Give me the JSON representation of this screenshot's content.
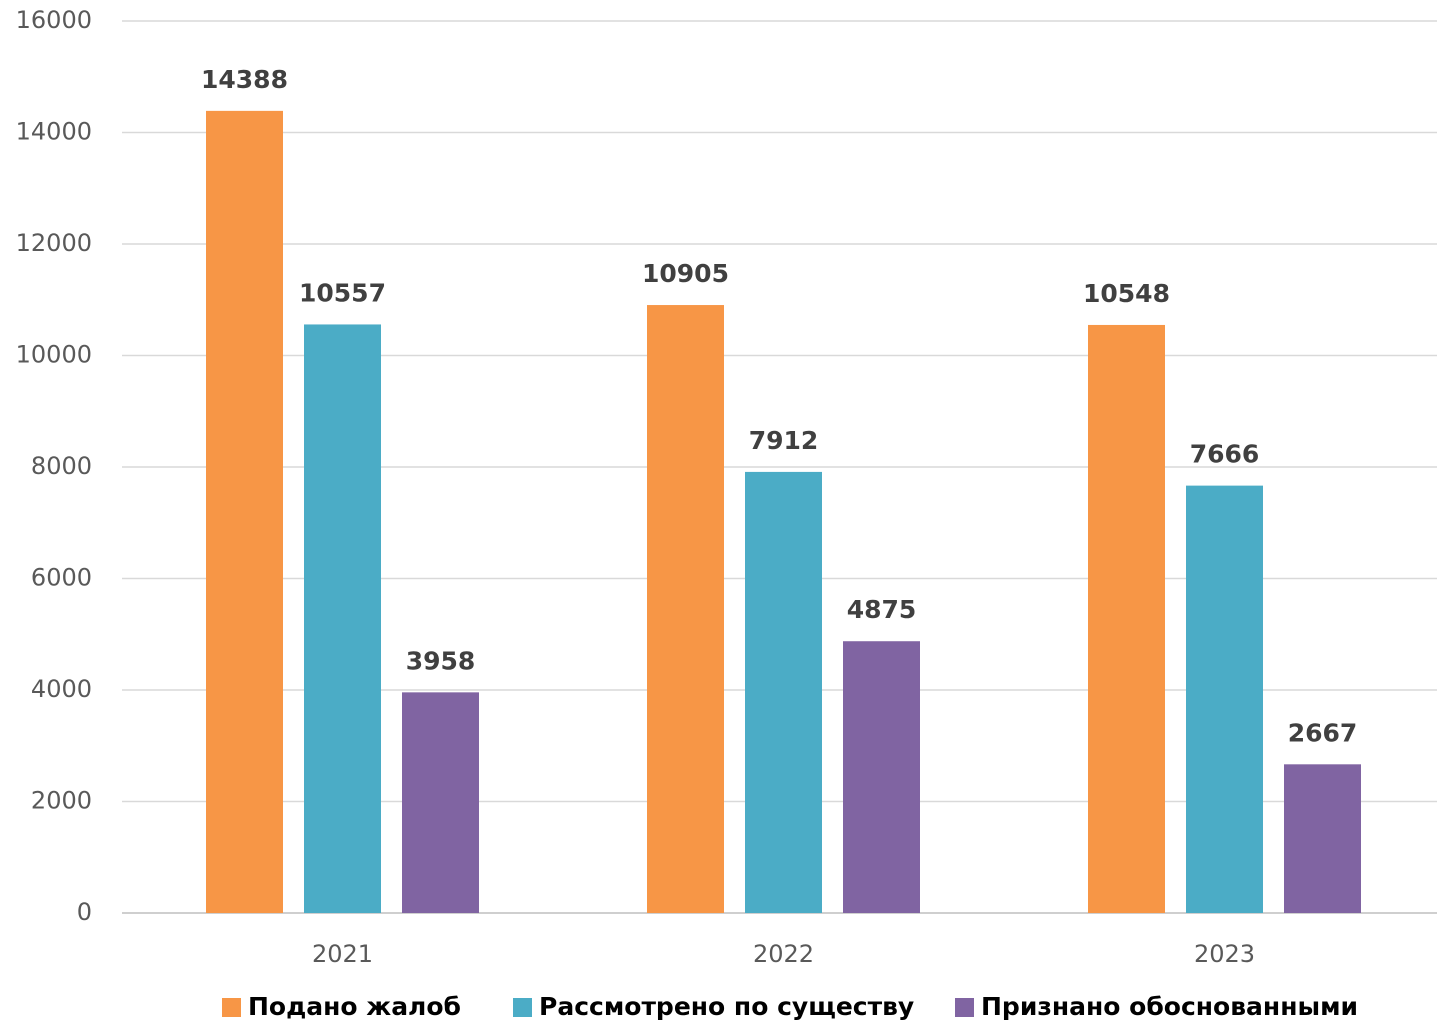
{
  "chart_data": {
    "type": "bar",
    "categories": [
      "2021",
      "2022",
      "2023"
    ],
    "series": [
      {
        "name": "Подано жалоб",
        "color": "#f79646",
        "values": [
          14388,
          10905,
          10548
        ]
      },
      {
        "name": "Рассмотрено по существу",
        "color": "#4bacc6",
        "values": [
          10557,
          7912,
          7666
        ]
      },
      {
        "name": "Признано обоснованными",
        "color": "#8064a2",
        "values": [
          3958,
          4875,
          2667
        ]
      }
    ],
    "ylim": [
      0,
      16000
    ],
    "yticks": [
      0,
      2000,
      4000,
      6000,
      8000,
      10000,
      12000,
      14000,
      16000
    ],
    "grid": true,
    "legend": "bottom"
  }
}
